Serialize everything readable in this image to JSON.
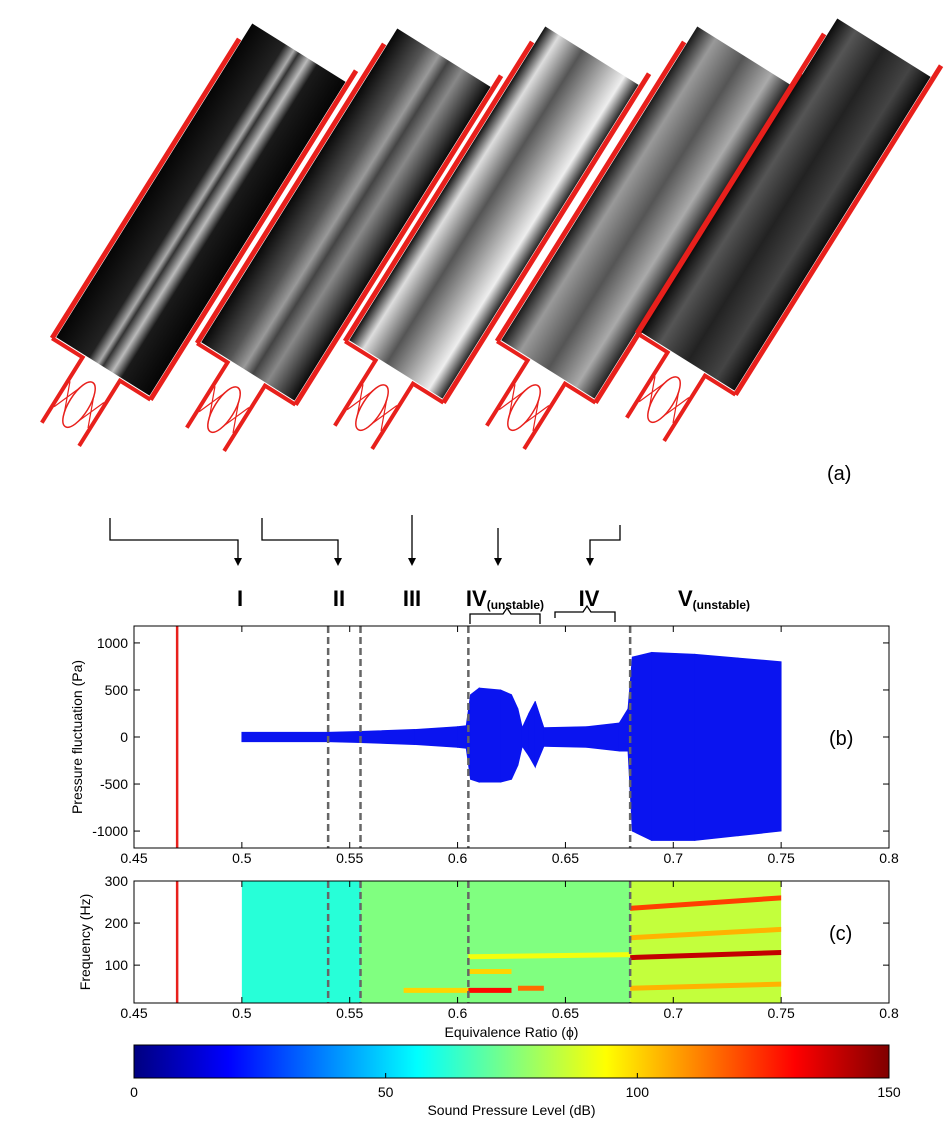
{
  "panel_a": {
    "label": "(a)",
    "regimes": [
      {
        "main": "I"
      },
      {
        "main": "II"
      },
      {
        "main": "III"
      },
      {
        "main": "IV",
        "sub": "(unstable)"
      },
      {
        "main": "IV"
      },
      {
        "main": "V",
        "sub": "(unstable)"
      }
    ]
  },
  "chart_data": [
    {
      "type": "envelope",
      "panel_label": "(b)",
      "ylabel": "Pressure fluctuation (Pa)",
      "xlim": [
        0.45,
        0.8
      ],
      "xticks": [
        0.45,
        0.5,
        0.55,
        0.6,
        0.65,
        0.7,
        0.75,
        0.8
      ],
      "ylim": [
        -1180,
        1180
      ],
      "yticks": [
        -1000,
        -500,
        0,
        500,
        1000
      ],
      "markers": [
        {
          "x": 0.47,
          "color": "#e8201c",
          "dashed": false
        },
        {
          "x": 0.54,
          "color": "#666666",
          "dashed": true
        },
        {
          "x": 0.555,
          "color": "#666666",
          "dashed": true
        },
        {
          "x": 0.605,
          "color": "#666666",
          "dashed": true
        },
        {
          "x": 0.68,
          "color": "#666666",
          "dashed": true
        }
      ],
      "series": [
        {
          "color": "#0a14f0",
          "x": [
            0.5,
            0.54,
            0.555,
            0.58,
            0.6,
            0.604,
            0.606,
            0.61,
            0.62,
            0.625,
            0.628,
            0.63,
            0.633,
            0.636,
            0.64,
            0.66,
            0.675,
            0.679,
            0.681,
            0.69,
            0.71,
            0.73,
            0.75
          ],
          "upper": [
            50,
            50,
            60,
            80,
            110,
            120,
            450,
            520,
            500,
            450,
            300,
            100,
            250,
            380,
            100,
            110,
            150,
            300,
            850,
            900,
            880,
            840,
            800
          ],
          "lower": [
            -50,
            -50,
            -60,
            -80,
            -110,
            -120,
            -450,
            -480,
            -480,
            -450,
            -300,
            -100,
            -200,
            -320,
            -100,
            -110,
            -150,
            -150,
            -1000,
            -1100,
            -1100,
            -1050,
            -1000
          ]
        }
      ]
    },
    {
      "type": "spectrogram",
      "panel_label": "(c)",
      "ylabel": "Frequency (Hz)",
      "xlabel": "Equivalence Ratio (ϕ)",
      "xlim": [
        0.45,
        0.8
      ],
      "xticks": [
        0.45,
        0.5,
        0.55,
        0.6,
        0.65,
        0.7,
        0.75,
        0.8
      ],
      "ylim": [
        10,
        300
      ],
      "yticks": [
        100,
        200,
        300
      ],
      "markers": [
        {
          "x": 0.47,
          "color": "#e8201c",
          "dashed": false
        },
        {
          "x": 0.54,
          "color": "#666666",
          "dashed": true
        },
        {
          "x": 0.555,
          "color": "#666666",
          "dashed": true
        },
        {
          "x": 0.605,
          "color": "#666666",
          "dashed": true
        },
        {
          "x": 0.68,
          "color": "#666666",
          "dashed": true
        }
      ],
      "regions": [
        {
          "x0": 0.5,
          "x1": 0.555,
          "level": 62
        },
        {
          "x0": 0.555,
          "x1": 0.68,
          "level": 75
        },
        {
          "x0": 0.68,
          "x1": 0.75,
          "level": 85
        }
      ],
      "bands": [
        {
          "x0": 0.575,
          "x1": 0.605,
          "f0": 40,
          "f1": 40,
          "level": 100
        },
        {
          "x0": 0.605,
          "x1": 0.625,
          "f0": 40,
          "f1": 40,
          "level": 130
        },
        {
          "x0": 0.628,
          "x1": 0.64,
          "f0": 45,
          "f1": 45,
          "level": 115
        },
        {
          "x0": 0.605,
          "x1": 0.625,
          "f0": 85,
          "f1": 85,
          "level": 100
        },
        {
          "x0": 0.605,
          "x1": 0.68,
          "f0": 120,
          "f1": 125,
          "level": 92
        },
        {
          "x0": 0.68,
          "x1": 0.75,
          "f0": 118,
          "f1": 130,
          "level": 140
        },
        {
          "x0": 0.68,
          "x1": 0.75,
          "f0": 235,
          "f1": 260,
          "level": 122
        },
        {
          "x0": 0.68,
          "x1": 0.75,
          "f0": 165,
          "f1": 185,
          "level": 105
        },
        {
          "x0": 0.68,
          "x1": 0.75,
          "f0": 45,
          "f1": 55,
          "level": 105
        }
      ],
      "colorbar": {
        "label": "Sound Pressure Level (dB)",
        "lim": [
          0,
          150
        ],
        "ticks": [
          0,
          50,
          100,
          150
        ]
      }
    }
  ]
}
